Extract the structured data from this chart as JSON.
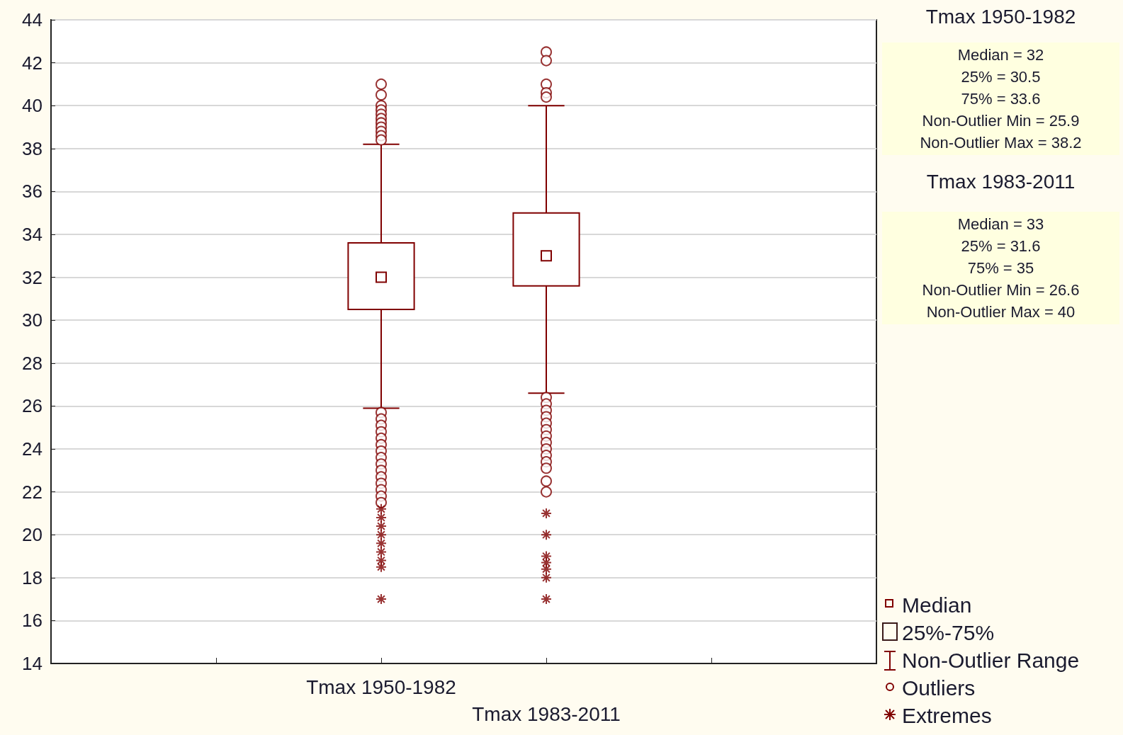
{
  "chart_data": {
    "type": "box",
    "categories": [
      null,
      null,
      "Tmax 1950-1982",
      "Tmax 1983-2011",
      null,
      null
    ],
    "ylim": [
      14,
      44
    ],
    "yticks": [
      14,
      16,
      18,
      20,
      22,
      24,
      26,
      28,
      30,
      32,
      34,
      36,
      38,
      40,
      42,
      44
    ],
    "grid": "y",
    "legend": "bottom right",
    "annotations": [
      "Tmax 1950-1982",
      "Median = 32\n25% = 30.5\n75% = 33.6\nNon-Outlier Min = 25.9\nNon-Outlier Max = 38.2",
      "Tmax 1983-2011",
      "Median = 33\n25% = 31.6\n75% = 35\nNon-Outlier Min = 26.6\nNon-Outlier Max = 40",
      "Median",
      "25%-75%",
      "Non-Outlier Range"
    ],
    "series": [
      {
        "color": "#800000",
        "boxes": [
          null,
          null,
          {
            "low": 25.9,
            "q1": 30.5,
            "median": 32,
            "q3": 33.6,
            "high": 38.2
          },
          {
            "low": 26.6,
            "q1": 31.6,
            "median": 33,
            "q3": 35,
            "high": 40
          },
          null,
          null
        ]
      },
      {
        "type": "scatter",
        "name": "Outliers",
        "marker": "circle",
        "color": "#800000",
        "x": [
          "Tmax 1950-1982",
          "Tmax 1950-1982",
          "Tmax 1950-1982",
          "Tmax 1950-1982",
          "Tmax 1950-1982",
          "Tmax 1950-1982",
          "Tmax 1950-1982",
          "Tmax 1950-1982",
          "Tmax 1950-1982",
          "Tmax 1950-1982",
          "Tmax 1950-1982",
          "Tmax 1950-1982",
          "Tmax 1950-1982",
          "Tmax 1950-1982",
          "Tmax 1950-1982",
          "Tmax 1950-1982",
          "Tmax 1950-1982",
          "Tmax 1950-1982",
          "Tmax 1950-1982",
          "Tmax 1950-1982",
          "Tmax 1950-1982",
          "Tmax 1950-1982",
          "Tmax 1950-1982",
          "Tmax 1950-1982",
          "Tmax 1950-1982",
          "Tmax 1950-1982",
          "Tmax 1983-2011",
          "Tmax 1983-2011",
          "Tmax 1983-2011",
          "Tmax 1983-2011",
          "Tmax 1983-2011",
          "Tmax 1983-2011",
          "Tmax 1983-2011",
          "Tmax 1983-2011",
          "Tmax 1983-2011",
          "Tmax 1983-2011",
          "Tmax 1983-2011",
          "Tmax 1983-2011",
          "Tmax 1983-2011",
          "Tmax 1983-2011",
          "Tmax 1983-2011",
          "Tmax 1983-2011",
          "Tmax 1983-2011",
          "Tmax 1983-2011",
          "Tmax 1983-2011"
        ],
        "values": [
          41,
          40.5,
          40,
          39.8,
          39.6,
          39.4,
          39.2,
          39,
          38.8,
          38.6,
          38.4,
          25.7,
          25.4,
          25.1,
          24.8,
          24.5,
          24.2,
          23.9,
          23.6,
          23.3,
          23,
          22.7,
          22.4,
          22.1,
          21.8,
          21.5,
          42.5,
          42.1,
          41,
          40.6,
          40.4,
          26.4,
          26.1,
          25.8,
          25.5,
          25.2,
          24.9,
          24.6,
          24.3,
          24,
          23.7,
          23.4,
          23.1,
          22.5,
          22
        ]
      },
      {
        "type": "scatter",
        "name": "Extremes",
        "marker": "cross",
        "color": "#800000",
        "x": [
          "Tmax 1950-1982",
          "Tmax 1950-1982",
          "Tmax 1950-1982",
          "Tmax 1950-1982",
          "Tmax 1950-1982",
          "Tmax 1950-1982",
          "Tmax 1950-1982",
          "Tmax 1950-1982",
          "Tmax 1950-1982",
          "Tmax 1983-2011",
          "Tmax 1983-2011",
          "Tmax 1983-2011",
          "Tmax 1983-2011",
          "Tmax 1983-2011",
          "Tmax 1983-2011",
          "Tmax 1983-2011"
        ],
        "values": [
          21.2,
          20.8,
          20.4,
          20,
          19.6,
          19.2,
          18.8,
          18.5,
          17,
          21,
          20,
          19,
          18.7,
          18.4,
          18,
          17
        ]
      }
    ]
  }
}
